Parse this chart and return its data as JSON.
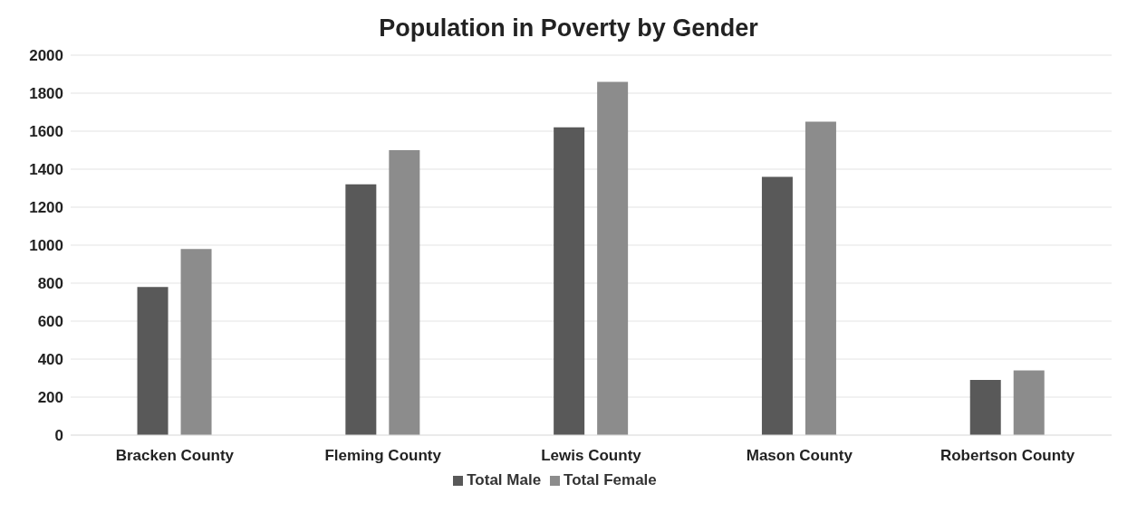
{
  "chart_data": {
    "type": "bar",
    "title": "Population in Poverty by Gender",
    "categories": [
      "Bracken County",
      "Fleming County",
      "Lewis County",
      "Mason County",
      "Robertson County"
    ],
    "series": [
      {
        "name": "Total Male",
        "color": "#595959",
        "values": [
          780,
          1320,
          1620,
          1360,
          290
        ]
      },
      {
        "name": "Total Female",
        "color": "#8c8c8c",
        "values": [
          980,
          1500,
          1860,
          1650,
          340
        ]
      }
    ],
    "ylim": [
      0,
      2000
    ],
    "yticks": [
      0,
      200,
      400,
      600,
      800,
      1000,
      1200,
      1400,
      1600,
      1800,
      2000
    ],
    "grid": "y",
    "legend": "bottom"
  }
}
